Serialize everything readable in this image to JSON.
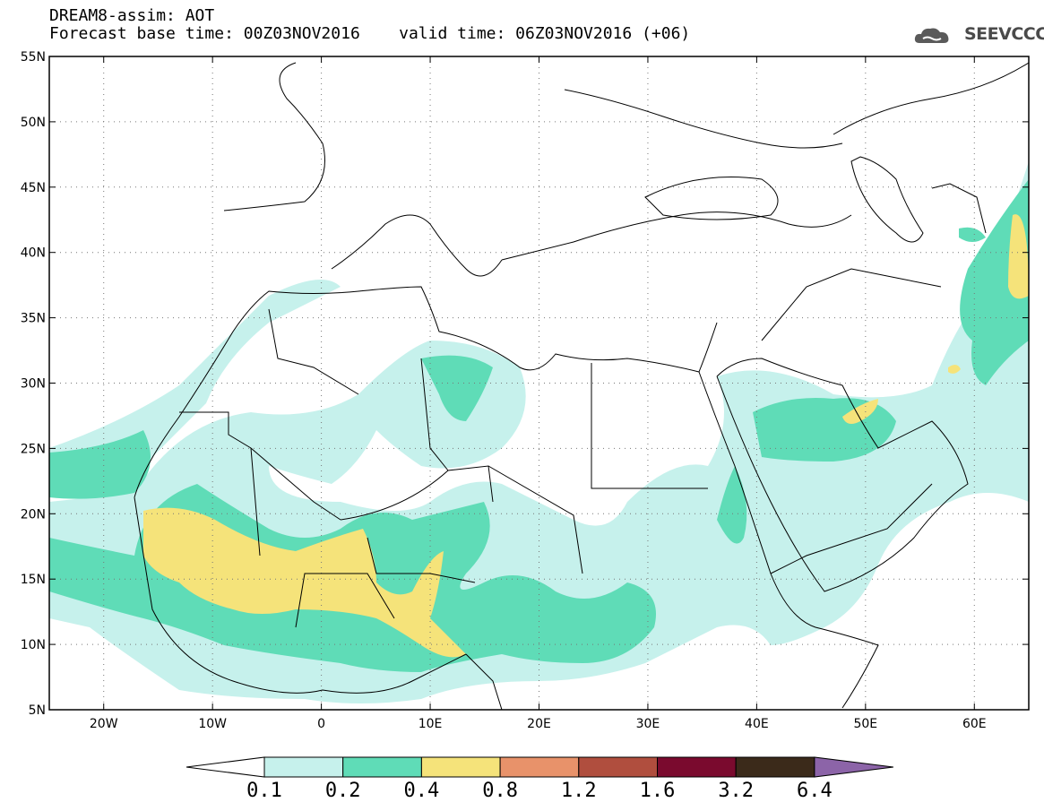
{
  "title": {
    "line1": "DREAM8-assim: AOT",
    "line2": "Forecast base time: 00Z03NOV2016    valid time: 06Z03NOV2016 (+06)"
  },
  "logo": {
    "text": "SEEVCCC",
    "icon": "cloud-icon"
  },
  "map": {
    "lon_range": [
      -25,
      65
    ],
    "lat_range": [
      5,
      55
    ],
    "lat_ticks": [
      "5N",
      "10N",
      "15N",
      "20N",
      "25N",
      "30N",
      "35N",
      "40N",
      "45N",
      "50N",
      "55N"
    ],
    "lon_ticks": [
      "20W",
      "10W",
      "0",
      "10E",
      "20E",
      "30E",
      "40E",
      "50E",
      "60E"
    ],
    "grid_dotted": true
  },
  "colorbar": {
    "labels": [
      "0.1",
      "0.2",
      "0.4",
      "0.8",
      "1.2",
      "1.6",
      "3.2",
      "6.4"
    ],
    "colors": [
      "#ffffff",
      "#c6f1ec",
      "#5fdcb7",
      "#f5e37a",
      "#e8926a",
      "#b04e3e",
      "#7a0a2e",
      "#3b2a1a",
      "#8c64a8"
    ]
  }
}
